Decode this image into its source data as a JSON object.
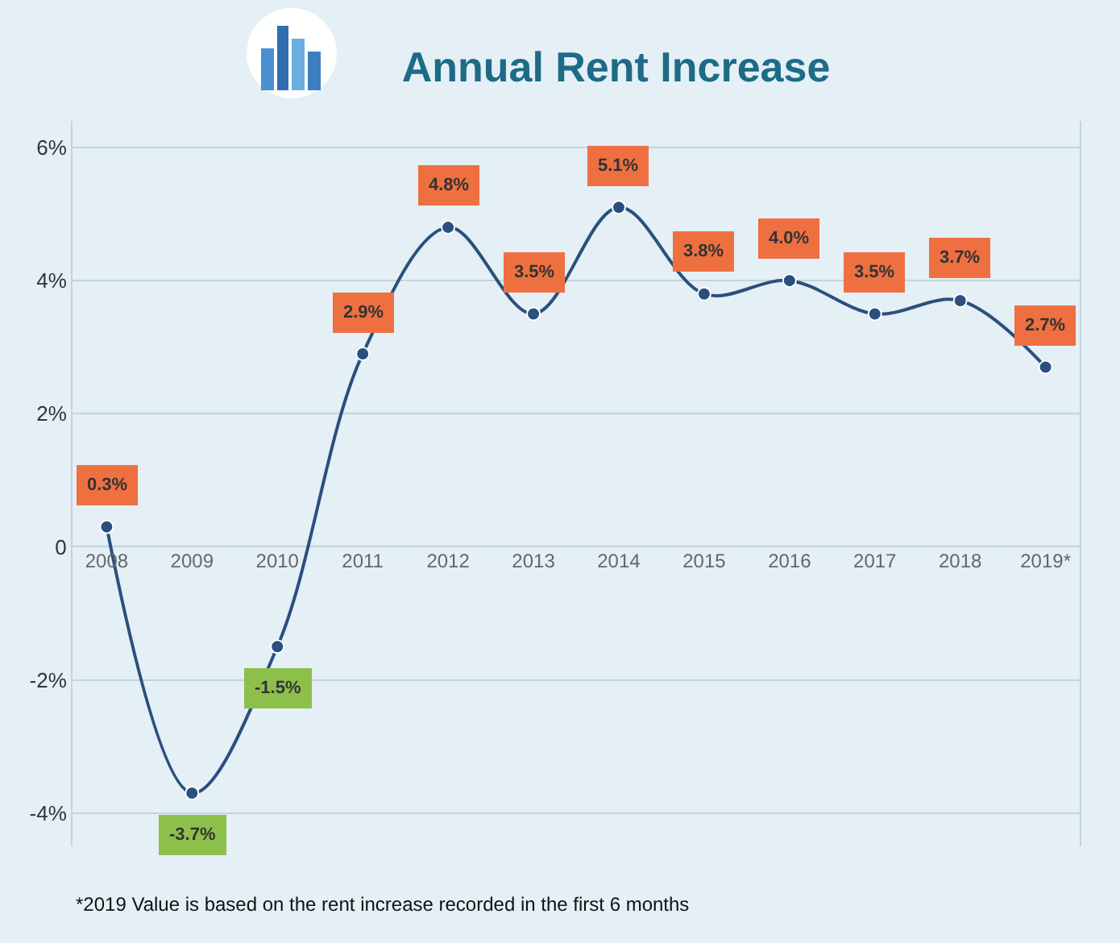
{
  "chart_data": {
    "type": "line",
    "title": "Annual Rent Increase",
    "categories": [
      "2008",
      "2009",
      "2010",
      "2011",
      "2012",
      "2013",
      "2014",
      "2015",
      "2016",
      "2017",
      "2018",
      "2019*"
    ],
    "series": [
      {
        "color": "#2b4f7e",
        "values": [
          0.3,
          -3.7,
          -1.5,
          2.9,
          4.8,
          3.5,
          5.1,
          3.8,
          4.0,
          3.5,
          3.7,
          2.7
        ]
      }
    ],
    "value_labels": [
      "0.3%",
      "-3.7%",
      "-1.5%",
      "2.9%",
      "4.8%",
      "3.5%",
      "5.1%",
      "3.8%",
      "4.0%",
      "3.5%",
      "3.7%",
      "2.7%"
    ],
    "ylim": [
      -4.5,
      6.4
    ],
    "yticks": [
      {
        "value": 6,
        "label": "6%"
      },
      {
        "value": 4,
        "label": "4%"
      },
      {
        "value": 2,
        "label": "2%"
      },
      0,
      {
        "value": -2,
        "label": "-2%"
      },
      {
        "value": -4,
        "label": "-4%"
      }
    ],
    "grid": "y",
    "legend": false,
    "marker": "circle",
    "line_style": "solid",
    "annotations": [
      "*2019 Value is based on the rent increase recorded in the first 6 months"
    ]
  }
}
